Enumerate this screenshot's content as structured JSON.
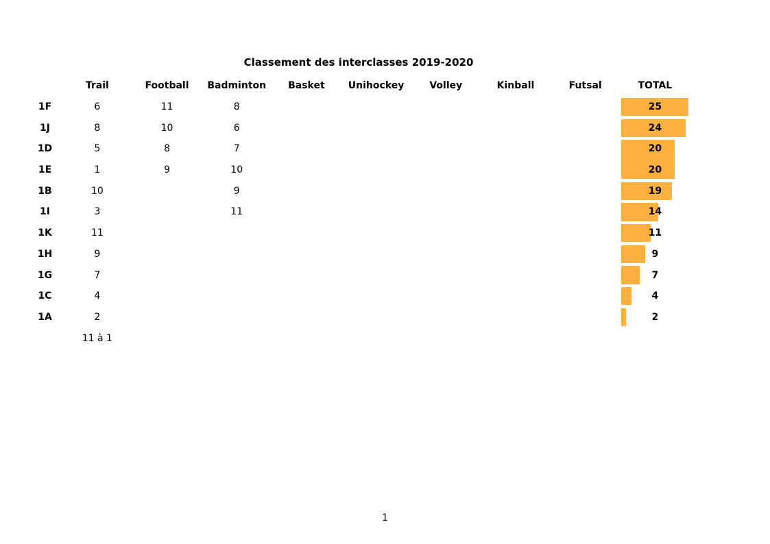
{
  "page": {
    "number": "1",
    "background": "#ffffff"
  },
  "chart_data": {
    "type": "table",
    "title": "Classement des interclasses 2019-2020",
    "columns": [
      "Trail",
      "Football",
      "Badminton",
      "Basket",
      "Unihockey",
      "Volley",
      "Kinball",
      "Futsal",
      "TOTAL"
    ],
    "bar": {
      "column": "TOTAL",
      "color": "#FBB040",
      "scale_max": 25
    },
    "rows": [
      {
        "label": "1F",
        "cells": [
          "6",
          "11",
          "8",
          "",
          "",
          "",
          "",
          ""
        ],
        "total": "25",
        "total_value": 25,
        "bar_merge": ""
      },
      {
        "label": "1J",
        "cells": [
          "8",
          "10",
          "6",
          "",
          "",
          "",
          "",
          ""
        ],
        "total": "24",
        "total_value": 24,
        "bar_merge": ""
      },
      {
        "label": "1D",
        "cells": [
          "5",
          "8",
          "7",
          "",
          "",
          "",
          "",
          ""
        ],
        "total": "20",
        "total_value": 20,
        "bar_merge": "bottom"
      },
      {
        "label": "1E",
        "cells": [
          "1",
          "9",
          "10",
          "",
          "",
          "",
          "",
          ""
        ],
        "total": "20",
        "total_value": 20,
        "bar_merge": "top"
      },
      {
        "label": "1B",
        "cells": [
          "10",
          "",
          "9",
          "",
          "",
          "",
          "",
          ""
        ],
        "total": "19",
        "total_value": 19,
        "bar_merge": ""
      },
      {
        "label": "1I",
        "cells": [
          "3",
          "",
          "11",
          "",
          "",
          "",
          "",
          ""
        ],
        "total": "14",
        "total_value": 14,
        "bar_merge": ""
      },
      {
        "label": "1K",
        "cells": [
          "11",
          "",
          "",
          "",
          "",
          "",
          "",
          ""
        ],
        "total": "11",
        "total_value": 11,
        "bar_merge": ""
      },
      {
        "label": "1H",
        "cells": [
          "9",
          "",
          "",
          "",
          "",
          "",
          "",
          ""
        ],
        "total": "9",
        "total_value": 9,
        "bar_merge": ""
      },
      {
        "label": "1G",
        "cells": [
          "7",
          "",
          "",
          "",
          "",
          "",
          "",
          ""
        ],
        "total": "7",
        "total_value": 7,
        "bar_merge": ""
      },
      {
        "label": "1C",
        "cells": [
          "4",
          "",
          "",
          "",
          "",
          "",
          "",
          ""
        ],
        "total": "4",
        "total_value": 4,
        "bar_merge": ""
      },
      {
        "label": "1A",
        "cells": [
          "2",
          "",
          "",
          "",
          "",
          "",
          "",
          ""
        ],
        "total": "2",
        "total_value": 2,
        "bar_merge": ""
      },
      {
        "label": "",
        "cells": [
          "11 à 1",
          "",
          "",
          "",
          "",
          "",
          "",
          ""
        ],
        "total": "",
        "total_value": null,
        "bar_merge": ""
      }
    ]
  }
}
